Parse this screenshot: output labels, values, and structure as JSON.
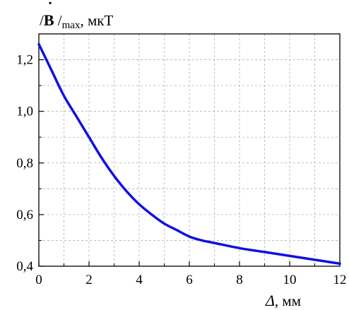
{
  "chart_data": {
    "type": "line",
    "title": "",
    "ylabel": {
      "bar_left": "/",
      "symbol": "B",
      "bar_right": " /",
      "subscript": "max",
      "unit": ", мкТ"
    },
    "xlabel": {
      "symbol": "Δ",
      "unit": ", мм"
    },
    "xlim": [
      0,
      12
    ],
    "ylim": [
      0.4,
      1.3
    ],
    "grid": true,
    "x_ticks": [
      {
        "value": 0,
        "label": "0"
      },
      {
        "value": 2,
        "label": "2"
      },
      {
        "value": 4,
        "label": "4"
      },
      {
        "value": 6,
        "label": "6"
      },
      {
        "value": 8,
        "label": "8"
      },
      {
        "value": 10,
        "label": "10"
      },
      {
        "value": 12,
        "label": "12"
      }
    ],
    "y_ticks": [
      {
        "value": 0.4,
        "label": "0,4"
      },
      {
        "value": 0.6,
        "label": "0,6"
      },
      {
        "value": 0.8,
        "label": "0,8"
      },
      {
        "value": 1.0,
        "label": "1,0"
      },
      {
        "value": 1.2,
        "label": "1,2"
      }
    ],
    "series": [
      {
        "color": "#1010e0",
        "x": [
          0,
          0.5,
          1,
          1.5,
          2,
          2.5,
          3,
          3.5,
          4,
          4.5,
          5,
          5.5,
          6,
          6.5,
          7,
          8,
          9,
          10,
          11,
          12
        ],
        "y": [
          1.26,
          1.16,
          1.06,
          0.98,
          0.9,
          0.82,
          0.75,
          0.69,
          0.64,
          0.6,
          0.565,
          0.54,
          0.515,
          0.5,
          0.49,
          0.47,
          0.455,
          0.44,
          0.425,
          0.41
        ]
      }
    ]
  }
}
